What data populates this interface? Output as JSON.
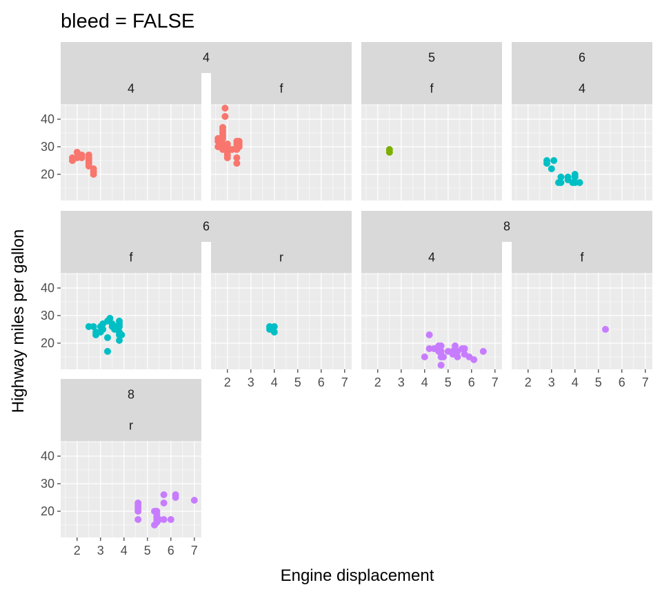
{
  "chart_data": {
    "type": "scatter",
    "title": "bleed = FALSE",
    "xlabel": "Engine displacement",
    "ylabel": "Highway miles per gallon",
    "xlim": [
      1.3,
      7.3
    ],
    "ylim": [
      10.5,
      45.5
    ],
    "x_ticks": [
      2,
      3,
      4,
      5,
      6,
      7
    ],
    "y_ticks": [
      20,
      30,
      40
    ],
    "grid": true,
    "facet_strip_labels_top": [
      "4",
      "5",
      "6",
      "8"
    ],
    "facet_strip_labels_bottom": [
      "4",
      "f",
      "r"
    ],
    "colors": {
      "4": "#F8766D",
      "5": "#7CAE00",
      "6": "#00BFC4",
      "8": "#C77CFF"
    },
    "panels": [
      {
        "cyl": "4",
        "drv": "4",
        "points": [
          [
            1.8,
            25
          ],
          [
            1.8,
            26
          ],
          [
            2.0,
            26
          ],
          [
            2.0,
            28
          ],
          [
            2.2,
            27
          ],
          [
            2.2,
            26
          ],
          [
            2.5,
            25
          ],
          [
            2.5,
            26
          ],
          [
            2.5,
            27
          ],
          [
            2.5,
            23
          ],
          [
            2.5,
            24
          ],
          [
            2.7,
            22
          ],
          [
            2.7,
            20
          ],
          [
            2.7,
            21
          ]
        ]
      },
      {
        "cyl": "4",
        "drv": "f",
        "points": [
          [
            1.8,
            29
          ],
          [
            1.8,
            31
          ],
          [
            1.8,
            33
          ],
          [
            1.6,
            32
          ],
          [
            1.6,
            30
          ],
          [
            1.6,
            33
          ],
          [
            1.9,
            44
          ],
          [
            1.9,
            41
          ],
          [
            1.9,
            29
          ],
          [
            1.8,
            36
          ],
          [
            1.8,
            37
          ],
          [
            1.8,
            34
          ],
          [
            1.8,
            35
          ],
          [
            2.0,
            30
          ],
          [
            2.0,
            31
          ],
          [
            2.0,
            28
          ],
          [
            2.0,
            29
          ],
          [
            2.0,
            26
          ],
          [
            2.0,
            27
          ],
          [
            2.2,
            29
          ],
          [
            2.4,
            24
          ],
          [
            2.4,
            26
          ],
          [
            2.4,
            29
          ],
          [
            2.4,
            30
          ],
          [
            2.4,
            31
          ],
          [
            2.4,
            32
          ],
          [
            2.5,
            31
          ],
          [
            2.5,
            32
          ],
          [
            2.5,
            30
          ]
        ]
      },
      {
        "cyl": "5",
        "drv": "f",
        "points": [
          [
            2.5,
            28
          ],
          [
            2.5,
            29
          ]
        ]
      },
      {
        "cyl": "6",
        "drv": "4",
        "points": [
          [
            2.8,
            25
          ],
          [
            2.8,
            24
          ],
          [
            3.0,
            22
          ],
          [
            3.1,
            25
          ],
          [
            3.3,
            17
          ],
          [
            3.4,
            17
          ],
          [
            3.4,
            19
          ],
          [
            3.7,
            18
          ],
          [
            3.7,
            19
          ],
          [
            3.9,
            17
          ],
          [
            4.0,
            17
          ],
          [
            4.0,
            19
          ],
          [
            4.0,
            20
          ],
          [
            4.2,
            17
          ]
        ]
      },
      {
        "cyl": "6",
        "drv": "f",
        "points": [
          [
            2.5,
            26
          ],
          [
            2.7,
            26
          ],
          [
            2.8,
            24
          ],
          [
            2.8,
            23
          ],
          [
            3.0,
            24
          ],
          [
            3.0,
            26
          ],
          [
            3.1,
            27
          ],
          [
            3.1,
            25
          ],
          [
            3.3,
            22
          ],
          [
            3.3,
            28
          ],
          [
            3.3,
            17
          ],
          [
            3.4,
            29
          ],
          [
            3.5,
            26
          ],
          [
            3.5,
            27
          ],
          [
            3.6,
            26
          ],
          [
            3.6,
            25
          ],
          [
            3.8,
            26
          ],
          [
            3.8,
            28
          ],
          [
            3.8,
            21
          ],
          [
            3.8,
            23
          ],
          [
            3.9,
            23
          ],
          [
            3.8,
            27
          ],
          [
            3.8,
            24
          ]
        ]
      },
      {
        "cyl": "6",
        "drv": "r",
        "points": [
          [
            3.8,
            26
          ],
          [
            3.8,
            25
          ],
          [
            4.0,
            24
          ],
          [
            4.0,
            26
          ],
          [
            3.9,
            25
          ]
        ]
      },
      {
        "cyl": "8",
        "drv": "4",
        "points": [
          [
            4.0,
            15
          ],
          [
            4.2,
            23
          ],
          [
            4.2,
            18
          ],
          [
            4.4,
            18
          ],
          [
            4.6,
            18
          ],
          [
            4.6,
            17
          ],
          [
            4.6,
            19
          ],
          [
            4.7,
            12
          ],
          [
            4.7,
            17
          ],
          [
            4.7,
            19
          ],
          [
            4.7,
            15
          ],
          [
            4.8,
            15
          ],
          [
            5.0,
            17
          ],
          [
            5.2,
            16
          ],
          [
            5.2,
            17
          ],
          [
            5.3,
            19
          ],
          [
            5.3,
            18
          ],
          [
            5.4,
            17
          ],
          [
            5.4,
            15
          ],
          [
            5.6,
            18
          ],
          [
            5.7,
            18
          ],
          [
            5.7,
            16
          ],
          [
            5.9,
            15
          ],
          [
            6.1,
            14
          ],
          [
            6.5,
            17
          ]
        ]
      },
      {
        "cyl": "8",
        "drv": "f",
        "points": [
          [
            5.3,
            25
          ]
        ]
      },
      {
        "cyl": "8",
        "drv": "r",
        "points": [
          [
            4.6,
            17
          ],
          [
            4.6,
            20
          ],
          [
            4.6,
            21
          ],
          [
            4.6,
            22
          ],
          [
            4.6,
            23
          ],
          [
            5.3,
            15
          ],
          [
            5.4,
            16
          ],
          [
            5.4,
            18
          ],
          [
            5.4,
            20
          ],
          [
            5.4,
            17
          ],
          [
            5.4,
            19
          ],
          [
            5.7,
            23
          ],
          [
            5.7,
            26
          ],
          [
            5.7,
            17
          ],
          [
            6.0,
            17
          ],
          [
            6.2,
            25
          ],
          [
            6.2,
            26
          ],
          [
            7.0,
            24
          ],
          [
            5.5,
            17
          ],
          [
            5.3,
            20
          ],
          [
            5.4,
            17
          ]
        ]
      }
    ]
  }
}
